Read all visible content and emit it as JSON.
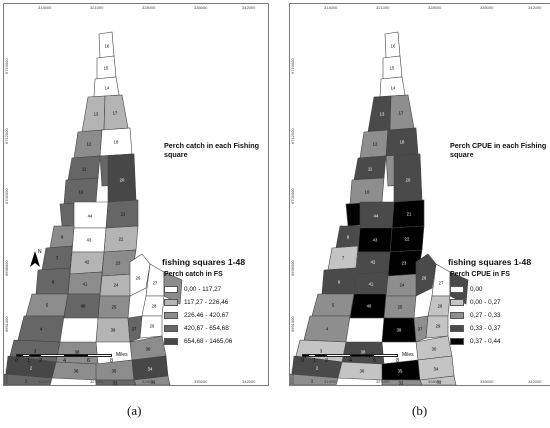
{
  "top_ticks": [
    "314000",
    "321000",
    "328000",
    "335000",
    "342000"
  ],
  "bottom_ticks": [
    "314000",
    "321000",
    "328000",
    "335000",
    "342000"
  ],
  "left_ticks": [
    "6719000",
    "6712000",
    "6705000",
    "6698000",
    "6691000",
    "6684000"
  ],
  "scalebar": {
    "labels": [
      "0",
      "1",
      "2",
      "4",
      "6",
      "8"
    ],
    "unit": "Miles"
  },
  "north_label": "N",
  "panels": [
    {
      "caption": "(a)",
      "map_title": "Perch catch in each Fishing square",
      "legend_title": "fishing squares 1-48",
      "legend_subtitle": "Perch  catch in FS",
      "legend": [
        {
          "label": "0,00 - 117,27",
          "color": "#ffffff"
        },
        {
          "label": "117,27 - 226,46",
          "color": "#b4b4b4"
        },
        {
          "label": "226,46 - 420,67",
          "color": "#8c8c8c"
        },
        {
          "label": "420,67 - 654,68",
          "color": "#666666"
        },
        {
          "label": "654,68 - 1465,06",
          "color": "#474747"
        }
      ],
      "squares": [
        {
          "id": "16",
          "class": 0
        },
        {
          "id": "15",
          "class": 0
        },
        {
          "id": "14",
          "class": 0
        },
        {
          "id": "13",
          "class": 1
        },
        {
          "id": "17",
          "class": 1
        },
        {
          "id": "12",
          "class": 2
        },
        {
          "id": "18",
          "class": 0
        },
        {
          "id": "19",
          "class": 3
        },
        {
          "id": "11",
          "class": 3
        },
        {
          "id": "20",
          "class": 4
        },
        {
          "id": "10",
          "class": 3
        },
        {
          "id": "21",
          "class": 3
        },
        {
          "id": "9",
          "class": 3
        },
        {
          "id": "22",
          "class": 1
        },
        {
          "id": "44",
          "class": 0
        },
        {
          "id": "8",
          "class": 2
        },
        {
          "id": "43",
          "class": 0
        },
        {
          "id": "23",
          "class": 2
        },
        {
          "id": "42",
          "class": 1
        },
        {
          "id": "7",
          "class": 3
        },
        {
          "id": "24",
          "class": 1
        },
        {
          "id": "41",
          "class": 2
        },
        {
          "id": "6",
          "class": 3
        },
        {
          "id": "25",
          "class": 2
        },
        {
          "id": "40",
          "class": 3
        },
        {
          "id": "5",
          "class": 2
        },
        {
          "id": "26",
          "class": 0
        },
        {
          "id": "39",
          "class": 1
        },
        {
          "id": "4",
          "class": 3
        },
        {
          "id": "27",
          "class": 0
        },
        {
          "id": "38",
          "class": 2
        },
        {
          "id": "3",
          "class": 3
        },
        {
          "id": "28",
          "class": 0
        },
        {
          "id": "37",
          "class": 3
        },
        {
          "id": "2",
          "class": 4
        },
        {
          "id": "29",
          "class": 0
        },
        {
          "id": "36",
          "class": 2
        },
        {
          "id": "1",
          "class": 3
        },
        {
          "id": "30",
          "class": 2
        },
        {
          "id": "35",
          "class": 2
        },
        {
          "id": "34",
          "class": 4
        },
        {
          "id": "31",
          "class": 2
        },
        {
          "id": "33",
          "class": 3
        },
        {
          "id": "32",
          "class": 2
        }
      ]
    },
    {
      "caption": "(b)",
      "map_title": "Perch CPUE in each Fishing square",
      "legend_title": "fishing squares 1-48",
      "legend_subtitle": "Perch CPUE in FS",
      "legend": [
        {
          "label": "0,00",
          "color": "#ffffff"
        },
        {
          "label": "0,00 - 0,27",
          "color": "#c4c4c4"
        },
        {
          "label": "0,27 - 0,33",
          "color": "#8e8e8e"
        },
        {
          "label": "0,33 - 0,37",
          "color": "#4a4a4a"
        },
        {
          "label": "0,37 - 0,44",
          "color": "#000000"
        }
      ],
      "squares": [
        {
          "id": "16",
          "class": 0
        },
        {
          "id": "15",
          "class": 0
        },
        {
          "id": "14",
          "class": 0
        },
        {
          "id": "13",
          "class": 3
        },
        {
          "id": "17",
          "class": 2
        },
        {
          "id": "12",
          "class": 2
        },
        {
          "id": "18",
          "class": 3
        },
        {
          "id": "19",
          "class": 2
        },
        {
          "id": "11",
          "class": 3
        },
        {
          "id": "20",
          "class": 3
        },
        {
          "id": "10",
          "class": 2
        },
        {
          "id": "21",
          "class": 4
        },
        {
          "id": "9",
          "class": 4
        },
        {
          "id": "22",
          "class": 4
        },
        {
          "id": "44",
          "class": 3
        },
        {
          "id": "8",
          "class": 3
        },
        {
          "id": "43",
          "class": 4
        },
        {
          "id": "23",
          "class": 4
        },
        {
          "id": "42",
          "class": 3
        },
        {
          "id": "7",
          "class": 1
        },
        {
          "id": "24",
          "class": 2
        },
        {
          "id": "41",
          "class": 3
        },
        {
          "id": "6",
          "class": 3
        },
        {
          "id": "25",
          "class": 2
        },
        {
          "id": "40",
          "class": 4
        },
        {
          "id": "5",
          "class": 2
        },
        {
          "id": "26",
          "class": 3
        },
        {
          "id": "39",
          "class": 4
        },
        {
          "id": "4",
          "class": 2
        },
        {
          "id": "27",
          "class": 0
        },
        {
          "id": "38",
          "class": 3
        },
        {
          "id": "3",
          "class": 1
        },
        {
          "id": "28",
          "class": 1
        },
        {
          "id": "37",
          "class": 2
        },
        {
          "id": "2",
          "class": 3
        },
        {
          "id": "29",
          "class": 1
        },
        {
          "id": "36",
          "class": 1
        },
        {
          "id": "1",
          "class": 2
        },
        {
          "id": "30",
          "class": 1
        },
        {
          "id": "35",
          "class": 4
        },
        {
          "id": "34",
          "class": 1
        },
        {
          "id": "31",
          "class": 3
        },
        {
          "id": "33",
          "class": 2
        },
        {
          "id": "32",
          "class": 1
        }
      ]
    }
  ]
}
